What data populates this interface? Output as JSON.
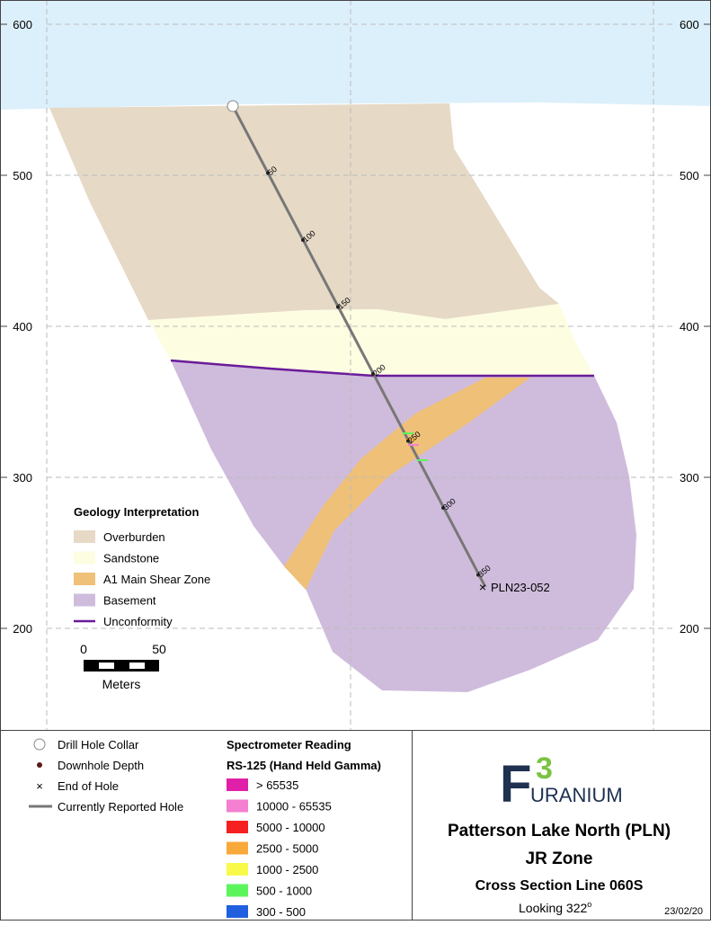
{
  "map": {
    "elevations": [
      600,
      500,
      400,
      300,
      200
    ],
    "hole_depths": [
      50,
      100,
      150,
      200,
      250,
      300,
      350
    ],
    "hole_id": "PLN23-052",
    "geology_legend": {
      "title": "Geology Interpretation",
      "items": [
        {
          "label": "Overburden",
          "color": "#e6d9c6"
        },
        {
          "label": "Sandstone",
          "color": "#fdfde2"
        },
        {
          "label": "A1 Main Shear Zone",
          "color": "#efc078"
        },
        {
          "label": "Basement",
          "color": "#cfbcdc"
        },
        {
          "label": "Unconformity",
          "color": "#6a1b9a"
        }
      ]
    },
    "scale_bar": {
      "labels": [
        0,
        50
      ],
      "unit": "Meters"
    }
  },
  "symbol_legend": [
    "Drill Hole Collar",
    "Downhole Depth",
    "End of Hole",
    "Currently Reported Hole"
  ],
  "spectrometer": {
    "title": "Spectrometer Reading",
    "subtitle": "RS-125 (Hand Held Gamma)",
    "items": [
      {
        "label": "> 65535",
        "color": "#e020a8"
      },
      {
        "label": "10000 - 65535",
        "color": "#f57fd0"
      },
      {
        "label": "5000 - 10000",
        "color": "#f52020"
      },
      {
        "label": "2500 - 5000",
        "color": "#f7a93a"
      },
      {
        "label": "1000 - 2500",
        "color": "#f9f94a"
      },
      {
        "label": "500 - 1000",
        "color": "#5cf55c"
      },
      {
        "label": "300 - 500",
        "color": "#2060e0"
      }
    ]
  },
  "logo": {
    "letter": "F",
    "number": "3",
    "word": "URANIUM"
  },
  "title_block": {
    "lines": [
      "Patterson Lake North (PLN)",
      "JR Zone",
      "Cross Section Line 060S"
    ],
    "looking": "Looking 322",
    "degree": "o",
    "date": "23/02/20"
  }
}
